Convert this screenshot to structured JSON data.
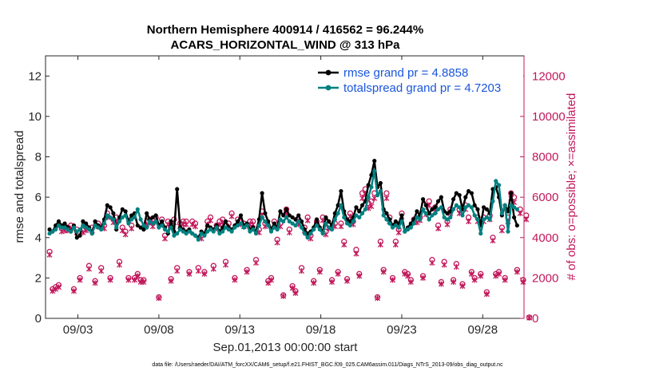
{
  "chart_data": {
    "type": "line",
    "title": "Northern Hemisphere 400914 / 416562 = 96.244%",
    "subtitle": "ACARS_HORIZONTAL_WIND @ 313 hPa",
    "xlabel": "Sep.01,2013 00:00:00 start",
    "ylabel": "rmse and totalspread",
    "y2label": "# of obs: o=possible; ×=assimilated",
    "footnote": "data file: /Users/raeder/DAI/ATM_forcXX/CAM6_setup/f.e21.FHIST_BGC.f09_025.CAM6assim.011/Diags_NTrS_2013-09/obs_diag_output.nc",
    "xlim": [
      1.0,
      30.55
    ],
    "ylim": [
      0,
      13
    ],
    "y2lim": [
      0,
      13000
    ],
    "x_ticks": [
      3,
      8,
      13,
      18,
      23,
      28
    ],
    "x_tick_labels": [
      "09/03",
      "09/08",
      "09/13",
      "09/18",
      "09/23",
      "09/28"
    ],
    "y_ticks": [
      0,
      2,
      4,
      6,
      8,
      10,
      12
    ],
    "y_tick_labels": [
      "0",
      "2",
      "4",
      "6",
      "8",
      "10",
      "12"
    ],
    "y2_ticks": [
      0,
      2000,
      4000,
      6000,
      8000,
      10000,
      12000
    ],
    "y2_tick_labels": [
      "0",
      "2000",
      "4000",
      "6000",
      "8000",
      "10000",
      "12000"
    ],
    "legend_position": "top-right",
    "colors": {
      "rmse": "#000000",
      "spread": "#008080",
      "obs": "#c2185b",
      "legend_text": "#1a56db"
    },
    "series": [
      {
        "name": "rmse grand pr = 4.8858",
        "axis": "left",
        "values": [
          4.4,
          4.3,
          4.6,
          4.8,
          4.6,
          4.7,
          4.5,
          4.3,
          4.6,
          4.0,
          4.1,
          4.8,
          4.7,
          4.5,
          4.2,
          4.8,
          4.6,
          4.5,
          4.9,
          5.6,
          5.5,
          5.2,
          4.4,
          5.0,
          5.4,
          5.3,
          4.8,
          5.1,
          5.2,
          4.6,
          4.5,
          4.4,
          5.2,
          4.9,
          5.0,
          5.1,
          4.6,
          4.8,
          4.5,
          4.2,
          4.8,
          4.3,
          6.4,
          4.5,
          4.4,
          4.3,
          4.4,
          4.2,
          4.1,
          4.0,
          4.3,
          4.2,
          4.6,
          4.5,
          4.4,
          4.6,
          4.3,
          4.5,
          4.8,
          4.5,
          4.4,
          4.6,
          4.8,
          5.1,
          4.6,
          4.7,
          4.4,
          4.5,
          4.3,
          4.9,
          6.2,
          5.2,
          4.8,
          4.4,
          4.7,
          4.5,
          5.3,
          5.1,
          5.4,
          5.1,
          5.0,
          4.9,
          5.1,
          4.8,
          4.4,
          4.2,
          4.3,
          4.5,
          4.9,
          4.5,
          4.3,
          5.0,
          4.8,
          4.6,
          5.2,
          5.6,
          6.3,
          5.3,
          4.9,
          4.8,
          5.0,
          5.5,
          5.3,
          5.6,
          5.8,
          6.6,
          7.1,
          7.8,
          6.5,
          6.7,
          5.4,
          5.2,
          4.9,
          4.6,
          4.8,
          4.7,
          5.1,
          4.3,
          4.5,
          4.7,
          4.9,
          5.3,
          5.1,
          5.9,
          5.6,
          5.2,
          5.4,
          5.5,
          5.8,
          6.0,
          5.3,
          5.2,
          5.3,
          5.9,
          6.2,
          6.1,
          5.4,
          6.0,
          6.3,
          6.2,
          5.6,
          5.4,
          4.6,
          5.5,
          5.4,
          5.2,
          6.4,
          6.5,
          6.0,
          5.1,
          5.6,
          5.3,
          6.2,
          5.0,
          4.6
        ],
        "color": "#000000"
      },
      {
        "name": "totalspread grand pr = 4.7203",
        "axis": "left",
        "values": [
          4.2,
          4.3,
          4.4,
          4.6,
          4.5,
          4.5,
          4.4,
          4.3,
          4.5,
          4.3,
          4.4,
          4.6,
          4.5,
          4.4,
          4.2,
          4.6,
          4.5,
          4.4,
          4.7,
          5.1,
          5.0,
          4.9,
          4.5,
          4.8,
          5.0,
          5.1,
          4.7,
          4.9,
          5.0,
          5.4,
          4.9,
          4.6,
          4.5,
          4.8,
          4.7,
          4.8,
          4.5,
          4.6,
          4.4,
          4.3,
          4.5,
          4.1,
          4.2,
          4.4,
          4.3,
          4.2,
          4.3,
          4.2,
          4.1,
          3.9,
          4.2,
          4.1,
          4.3,
          4.4,
          4.3,
          4.5,
          4.2,
          4.3,
          4.5,
          4.4,
          4.3,
          4.5,
          4.6,
          4.7,
          4.5,
          4.6,
          4.3,
          4.4,
          4.2,
          4.6,
          5.0,
          4.8,
          4.6,
          4.3,
          4.5,
          4.4,
          4.9,
          4.8,
          5.0,
          4.8,
          4.7,
          4.6,
          4.8,
          4.5,
          4.2,
          4.0,
          4.2,
          4.4,
          4.6,
          4.4,
          4.2,
          4.7,
          4.5,
          4.4,
          4.9,
          5.2,
          5.6,
          5.0,
          4.7,
          4.6,
          4.8,
          5.1,
          5.0,
          5.2,
          5.4,
          6.0,
          6.5,
          7.3,
          6.1,
          6.3,
          5.1,
          4.9,
          4.7,
          4.5,
          4.6,
          4.5,
          4.8,
          4.3,
          4.4,
          4.5,
          4.7,
          5.0,
          4.9,
          5.4,
          5.2,
          4.9,
          5.1,
          5.2,
          5.4,
          5.5,
          5.0,
          4.9,
          5.0,
          5.4,
          5.6,
          5.5,
          5.1,
          5.5,
          5.6,
          5.5,
          5.1,
          4.9,
          4.2,
          4.9,
          5.0,
          4.9,
          5.8,
          6.8,
          6.6,
          5.2,
          5.6,
          4.3,
          5.6,
          5.5,
          5.4
        ],
        "color": "#008080"
      }
    ],
    "obs_possible_right_axis": [
      3300,
      1450,
      1550,
      1650,
      4450,
      4500,
      4500,
      4600,
      1450,
      4400,
      2000,
      4400,
      4500,
      2600,
      4500,
      1850,
      4700,
      2500,
      4600,
      5200,
      2000,
      4900,
      5000,
      2800,
      4500,
      4300,
      2000,
      4600,
      2000,
      2200,
      1900,
      1900,
      4800,
      4900,
      4700,
      5000,
      1050,
      4900,
      4100,
      4800,
      1950,
      4900,
      2500,
      4700,
      4800,
      4800,
      2300,
      4800,
      4700,
      2500,
      4100,
      2300,
      4800,
      5000,
      2600,
      4600,
      4800,
      4900,
      2800,
      4700,
      5200,
      2000,
      4900,
      4800,
      4700,
      2400,
      4800,
      4800,
      2900,
      4400,
      5300,
      4700,
      1850,
      2000,
      4800,
      3900,
      4700,
      1150,
      5400,
      4400,
      1600,
      1350,
      4800,
      2500,
      4500,
      5000,
      4100,
      1850,
      4800,
      2400,
      5000,
      4300,
      4600,
      1900,
      4700,
      2300,
      4700,
      3800,
      1950,
      5200,
      4800,
      3400,
      2200,
      6200,
      6400,
      5700,
      5800,
      6200,
      1050,
      3800,
      2400,
      6200,
      5000,
      2000,
      3800,
      4400,
      5200,
      2300,
      2200,
      1900,
      4900,
      4900,
      5000,
      2100,
      5300,
      5800,
      2900,
      5500,
      4600,
      1800,
      2800,
      4800,
      5400,
      1900,
      2700,
      5400,
      1700,
      5600,
      5000,
      2300,
      2000,
      5000,
      2200,
      5000,
      1300,
      5100,
      4000,
      2200,
      2300,
      4500,
      2000,
      5000,
      6200,
      6000,
      2400,
      5400,
      1900,
      5100,
      50
    ],
    "obs_assimilated_right_axis": [
      3150,
      1350,
      1450,
      1550,
      4300,
      4350,
      4350,
      4450,
      1350,
      4250,
      1900,
      4250,
      4350,
      2450,
      4350,
      1750,
      4550,
      2350,
      4450,
      5000,
      1900,
      4750,
      4800,
      2650,
      4350,
      4150,
      1900,
      4450,
      1900,
      2100,
      1800,
      1800,
      4650,
      4750,
      4550,
      4850,
      1000,
      4750,
      3950,
      4650,
      1850,
      4750,
      2350,
      4550,
      4650,
      4650,
      2200,
      4650,
      4550,
      2350,
      3950,
      2200,
      4650,
      4850,
      2450,
      4450,
      4650,
      4750,
      2650,
      4550,
      5050,
      1900,
      4750,
      4650,
      4550,
      2300,
      4650,
      4650,
      2750,
      4250,
      5100,
      4550,
      1750,
      1900,
      4650,
      3750,
      4550,
      1100,
      5200,
      4250,
      1500,
      1250,
      4650,
      2350,
      4350,
      4850,
      3950,
      1750,
      4650,
      2300,
      4850,
      4150,
      4450,
      1800,
      4550,
      2200,
      4550,
      3650,
      1850,
      5050,
      4650,
      3200,
      2100,
      5950,
      6150,
      5450,
      5550,
      5950,
      1000,
      3650,
      2300,
      5950,
      4800,
      1900,
      3650,
      4250,
      5050,
      2200,
      2100,
      1800,
      4750,
      4750,
      4850,
      2000,
      5150,
      5600,
      2750,
      5300,
      4450,
      1700,
      2650,
      4650,
      5200,
      1800,
      2550,
      5200,
      1600,
      5400,
      4800,
      2200,
      1900,
      4800,
      2100,
      4800,
      1200,
      4900,
      3850,
      2100,
      2200,
      4350,
      1900,
      4800,
      5950,
      5750,
      2300,
      5200,
      1800,
      4900,
      30
    ]
  }
}
